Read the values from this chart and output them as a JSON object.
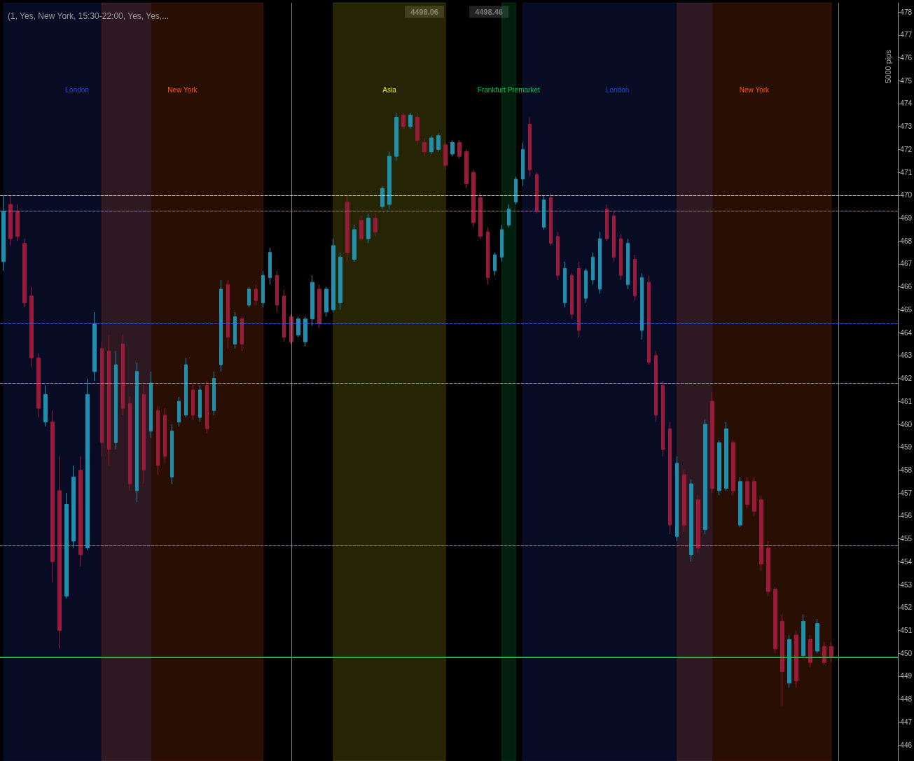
{
  "chart_data": {
    "type": "candlestick",
    "title": "(1, Yes, New York, 15:30-22:00, Yes, Yes,...",
    "categories": [
      null,
      null,
      null,
      null,
      null,
      null,
      null,
      null,
      null,
      null,
      null,
      null,
      null,
      null,
      null,
      null,
      null,
      null,
      null,
      null,
      null,
      null,
      null,
      null,
      null,
      null,
      null,
      null,
      null,
      null,
      null,
      null,
      null,
      null,
      null,
      null,
      null,
      null,
      null,
      null,
      null,
      null,
      null,
      null,
      null,
      null,
      null,
      null,
      null,
      null,
      null,
      null,
      null,
      null,
      null,
      null,
      null,
      null,
      null,
      null,
      null,
      null,
      null,
      null,
      null,
      null,
      null,
      null,
      null,
      null,
      null,
      null,
      null,
      null,
      null,
      null,
      null,
      null,
      null,
      null,
      null,
      null,
      null,
      null,
      null,
      null,
      null,
      null,
      null,
      null,
      null,
      null,
      null,
      null,
      null,
      null,
      null,
      null,
      null,
      null,
      null,
      null,
      null,
      null,
      null,
      null,
      null,
      null,
      null,
      null,
      null,
      null,
      null,
      null,
      null,
      null,
      null,
      null,
      null,
      null,
      null,
      null,
      null,
      null,
      null,
      null,
      null,
      null
    ],
    "ohlc": [
      [
        467.1,
        470.0,
        466.7,
        469.3
      ],
      [
        469.6,
        470.0,
        467.8,
        468.1
      ],
      [
        469.3,
        469.6,
        468.0,
        468.2
      ],
      [
        467.9,
        468.1,
        465.1,
        465.3
      ],
      [
        465.6,
        466.0,
        462.5,
        462.9
      ],
      [
        462.9,
        463.1,
        460.3,
        460.7
      ],
      [
        460.1,
        461.7,
        459.9,
        461.3
      ],
      [
        460.1,
        460.6,
        453.1,
        454.0
      ],
      [
        457.1,
        458.6,
        450.2,
        451.0
      ],
      [
        452.5,
        457.0,
        452.4,
        456.5
      ],
      [
        454.9,
        458.2,
        454.6,
        457.7
      ],
      [
        458.0,
        458.6,
        453.8,
        454.3
      ],
      [
        454.6,
        462.0,
        454.5,
        461.3
      ],
      [
        462.3,
        464.9,
        461.9,
        464.4
      ],
      [
        463.3,
        463.6,
        458.6,
        459.2
      ],
      [
        463.2,
        463.9,
        458.2,
        458.9
      ],
      [
        459.2,
        463.2,
        458.9,
        462.6
      ],
      [
        463.5,
        463.9,
        460.4,
        460.7
      ],
      [
        460.9,
        461.2,
        457.1,
        457.4
      ],
      [
        457.1,
        462.7,
        456.6,
        462.3
      ],
      [
        461.3,
        461.7,
        457.4,
        458.0
      ],
      [
        459.7,
        462.3,
        459.4,
        461.8
      ],
      [
        460.6,
        460.8,
        457.8,
        458.2
      ],
      [
        460.4,
        460.7,
        458.3,
        458.6
      ],
      [
        457.7,
        460.0,
        457.4,
        459.7
      ],
      [
        460.1,
        461.2,
        459.9,
        461.0
      ],
      [
        460.4,
        462.9,
        460.3,
        462.6
      ],
      [
        461.5,
        461.7,
        460.2,
        460.4
      ],
      [
        460.3,
        461.7,
        460.1,
        461.5
      ],
      [
        461.7,
        461.9,
        459.6,
        459.8
      ],
      [
        460.6,
        462.3,
        460.4,
        462.0
      ],
      [
        462.6,
        466.3,
        462.3,
        465.9
      ],
      [
        466.1,
        466.3,
        463.3,
        463.8
      ],
      [
        463.5,
        464.9,
        463.3,
        464.7
      ],
      [
        464.6,
        464.7,
        463.2,
        463.5
      ],
      [
        465.2,
        466.0,
        465.1,
        465.9
      ],
      [
        465.9,
        466.1,
        465.2,
        465.4
      ],
      [
        465.3,
        466.7,
        465.1,
        466.5
      ],
      [
        466.4,
        467.7,
        466.1,
        467.5
      ],
      [
        466.5,
        466.7,
        464.9,
        465.2
      ],
      [
        465.6,
        465.9,
        463.6,
        463.8
      ],
      [
        464.7,
        464.8,
        463.5,
        463.6
      ],
      [
        463.9,
        464.7,
        463.8,
        464.6
      ],
      [
        463.6,
        464.7,
        463.4,
        464.6
      ],
      [
        464.6,
        466.5,
        464.3,
        466.2
      ],
      [
        465.9,
        466.1,
        464.2,
        464.4
      ],
      [
        464.9,
        466.0,
        464.7,
        465.9
      ],
      [
        465.0,
        468.1,
        464.9,
        467.8
      ],
      [
        465.3,
        467.5,
        465.0,
        467.3
      ],
      [
        469.7,
        470.0,
        467.1,
        467.5
      ],
      [
        467.2,
        468.7,
        467.1,
        468.5
      ],
      [
        468.9,
        469.1,
        468.0,
        468.1
      ],
      [
        468.1,
        469.2,
        467.9,
        469.0
      ],
      [
        469.0,
        469.2,
        468.2,
        468.4
      ],
      [
        469.5,
        470.4,
        469.4,
        470.3
      ],
      [
        469.6,
        471.9,
        469.4,
        471.7
      ],
      [
        471.7,
        473.6,
        471.5,
        473.4
      ],
      [
        473.5,
        473.6,
        472.9,
        473.0
      ],
      [
        473.0,
        473.6,
        472.9,
        473.5
      ],
      [
        473.4,
        473.6,
        472.2,
        472.4
      ],
      [
        472.3,
        472.5,
        471.7,
        471.9
      ],
      [
        471.9,
        472.6,
        471.8,
        472.5
      ],
      [
        472.0,
        472.7,
        471.9,
        472.6
      ],
      [
        472.2,
        472.3,
        471.1,
        471.3
      ],
      [
        471.8,
        472.4,
        471.7,
        472.3
      ],
      [
        472.3,
        472.4,
        471.6,
        471.7
      ],
      [
        471.9,
        472.0,
        470.3,
        470.5
      ],
      [
        471.0,
        471.1,
        468.6,
        468.8
      ],
      [
        469.9,
        470.1,
        468.1,
        468.2
      ],
      [
        468.4,
        468.6,
        466.1,
        466.4
      ],
      [
        466.7,
        467.5,
        466.5,
        467.4
      ],
      [
        467.3,
        468.7,
        467.1,
        468.5
      ],
      [
        468.7,
        469.6,
        468.6,
        469.4
      ],
      [
        469.7,
        470.8,
        469.6,
        470.7
      ],
      [
        470.7,
        472.3,
        470.4,
        472.0
      ],
      [
        473.1,
        473.4,
        470.8,
        471.1
      ],
      [
        470.9,
        471.0,
        469.2,
        469.3
      ],
      [
        468.6,
        470.0,
        468.5,
        469.8
      ],
      [
        469.9,
        470.1,
        467.8,
        467.9
      ],
      [
        468.2,
        468.4,
        466.3,
        466.5
      ],
      [
        465.3,
        467.1,
        465.1,
        466.8
      ],
      [
        466.5,
        466.6,
        464.6,
        464.8
      ],
      [
        466.8,
        467.1,
        463.8,
        464.1
      ],
      [
        465.5,
        466.8,
        465.3,
        466.7
      ],
      [
        466.3,
        467.5,
        466.1,
        467.3
      ],
      [
        465.9,
        468.4,
        465.7,
        468.1
      ],
      [
        469.4,
        469.6,
        468.0,
        468.1
      ],
      [
        469.1,
        469.3,
        467.1,
        467.3
      ],
      [
        468.1,
        468.3,
        466.3,
        466.5
      ],
      [
        466.1,
        468.1,
        465.9,
        467.9
      ],
      [
        467.2,
        467.4,
        465.4,
        465.6
      ],
      [
        464.1,
        466.6,
        463.7,
        466.4
      ],
      [
        466.2,
        466.5,
        462.6,
        462.7
      ],
      [
        463.0,
        463.2,
        460.1,
        460.4
      ],
      [
        461.7,
        461.9,
        458.6,
        458.9
      ],
      [
        459.8,
        460.1,
        455.2,
        455.6
      ],
      [
        455.1,
        458.6,
        454.9,
        458.3
      ],
      [
        457.8,
        458.0,
        455.3,
        455.6
      ],
      [
        454.3,
        457.6,
        454.0,
        457.4
      ],
      [
        456.7,
        456.9,
        454.4,
        454.6
      ],
      [
        455.4,
        460.2,
        455.2,
        460.0
      ],
      [
        461.0,
        461.4,
        457.0,
        457.2
      ],
      [
        457.1,
        459.3,
        456.9,
        459.2
      ],
      [
        457.2,
        460.1,
        457.1,
        459.8
      ],
      [
        459.2,
        459.3,
        456.9,
        457.1
      ],
      [
        455.6,
        457.7,
        455.5,
        457.5
      ],
      [
        457.5,
        457.7,
        456.3,
        456.5
      ],
      [
        457.5,
        457.7,
        456.0,
        456.2
      ],
      [
        456.7,
        456.9,
        453.6,
        453.9
      ],
      [
        454.6,
        454.9,
        452.5,
        452.7
      ],
      [
        452.8,
        452.9,
        450.0,
        450.2
      ],
      [
        451.4,
        451.7,
        447.7,
        449.2
      ],
      [
        448.7,
        450.8,
        448.5,
        450.6
      ],
      [
        450.8,
        451.0,
        448.5,
        448.8
      ],
      [
        449.9,
        451.7,
        449.8,
        451.4
      ],
      [
        450.6,
        450.8,
        449.4,
        449.6
      ],
      [
        450.1,
        451.5,
        450.0,
        451.3
      ],
      [
        450.3,
        450.5,
        449.5,
        449.6
      ],
      [
        450.3,
        450.5,
        449.6,
        449.8
      ],
      null,
      null,
      null,
      null,
      null,
      null,
      null,
      null,
      null
    ],
    "colors": [
      "#1f8fae",
      "#9a1a3a",
      "#9a1a3a",
      "#9a1a3a",
      "#9a1a3a",
      "#9a1a3a",
      "#1f8fae",
      "#9a1a3a",
      "#9a1a3a",
      "#1f8fae",
      "#1f8fae",
      "#9a1a3a",
      "#1f8fae",
      "#1f8fae",
      "#9a1a3a",
      "#9a1a3a",
      "#1f8fae",
      "#9a1a3a",
      "#9a1a3a",
      "#1f8fae",
      "#9a1a3a",
      "#1f8fae",
      "#9a1a3a",
      "#9a1a3a",
      "#1f8fae",
      "#1f8fae",
      "#1f8fae",
      "#9a1a3a",
      "#1f8fae",
      "#9a1a3a",
      "#1f8fae",
      "#1f8fae",
      "#9a1a3a",
      "#1f8fae",
      "#9a1a3a",
      "#1f8fae",
      "#9a1a3a",
      "#1f8fae",
      "#1f8fae",
      "#9a1a3a",
      "#9a1a3a",
      "#9a1a3a",
      "#1f8fae",
      "#1f8fae",
      "#1f8fae",
      "#9a1a3a",
      "#1f8fae",
      "#1f8fae",
      "#1f8fae",
      "#9a1a3a",
      "#1f8fae",
      "#9a1a3a",
      "#1f8fae",
      "#9a1a3a",
      "#1f8fae",
      "#1f8fae",
      "#1f8fae",
      "#9a1a3a",
      "#1f8fae",
      "#9a1a3a",
      "#9a1a3a",
      "#1f8fae",
      "#1f8fae",
      "#9a1a3a",
      "#1f8fae",
      "#9a1a3a",
      "#9a1a3a",
      "#9a1a3a",
      "#9a1a3a",
      "#9a1a3a",
      "#1f8fae",
      "#1f8fae",
      "#1f8fae",
      "#1f8fae",
      "#1f8fae",
      "#9a1a3a",
      "#9a1a3a",
      "#1f8fae",
      "#9a1a3a",
      "#9a1a3a",
      "#1f8fae",
      "#9a1a3a",
      "#9a1a3a",
      "#1f8fae",
      "#1f8fae",
      "#1f8fae",
      "#9a1a3a",
      "#9a1a3a",
      "#9a1a3a",
      "#1f8fae",
      "#9a1a3a",
      "#1f8fae",
      "#9a1a3a",
      "#9a1a3a",
      "#9a1a3a",
      "#9a1a3a",
      "#1f8fae",
      "#9a1a3a",
      "#1f8fae",
      "#9a1a3a",
      "#1f8fae",
      "#9a1a3a",
      "#1f8fae",
      "#1f8fae",
      "#9a1a3a",
      "#1f8fae",
      "#9a1a3a",
      "#9a1a3a",
      "#9a1a3a",
      "#9a1a3a",
      "#9a1a3a",
      "#9a1a3a",
      "#1f8fae",
      "#9a1a3a",
      "#1f8fae",
      "#9a1a3a",
      "#1f8fae",
      "#9a1a3a",
      "#9a1a3a",
      null,
      null,
      null,
      null,
      null,
      null,
      null,
      null,
      null
    ],
    "ylim": [
      445.3,
      478.4
    ],
    "yticks": [
      478,
      477,
      476,
      475,
      474,
      473,
      472,
      471,
      470,
      469,
      468,
      467,
      466,
      465,
      464,
      463,
      462,
      461,
      460,
      459,
      458,
      457,
      456,
      455,
      454,
      453,
      452,
      451,
      450,
      449,
      448,
      447,
      446
    ],
    "tick_labels": "y",
    "ref_lines": [
      {
        "axis": "y",
        "value": 464.4,
        "color": "#4060d0",
        "line_style": "dashed"
      },
      {
        "axis": "y",
        "value": 461.8,
        "color": "#ff8040",
        "line_style": "dashed"
      },
      {
        "axis": "y",
        "value": 470.0,
        "color": "#e0e060",
        "line_style": "dashed"
      },
      {
        "axis": "y",
        "value": 469.3,
        "color": "#20c060",
        "line_style": "dashed"
      },
      {
        "axis": "y",
        "value": 454.7,
        "color": "#ff5a10",
        "line_style": "dashed"
      },
      {
        "axis": "y",
        "value": 449.846,
        "color": "#20a040",
        "line_style": "solid"
      },
      {
        "axis": "y",
        "value": 449.806,
        "color": "#ff5a10",
        "line_style": "solid"
      }
    ],
    "annotations": [
      "4498.06",
      "4498.46",
      "5000 pips",
      "London",
      "New York",
      "Asia",
      "Frankfurt Premarket",
      "London",
      "New York"
    ],
    "grid": false
  }
}
